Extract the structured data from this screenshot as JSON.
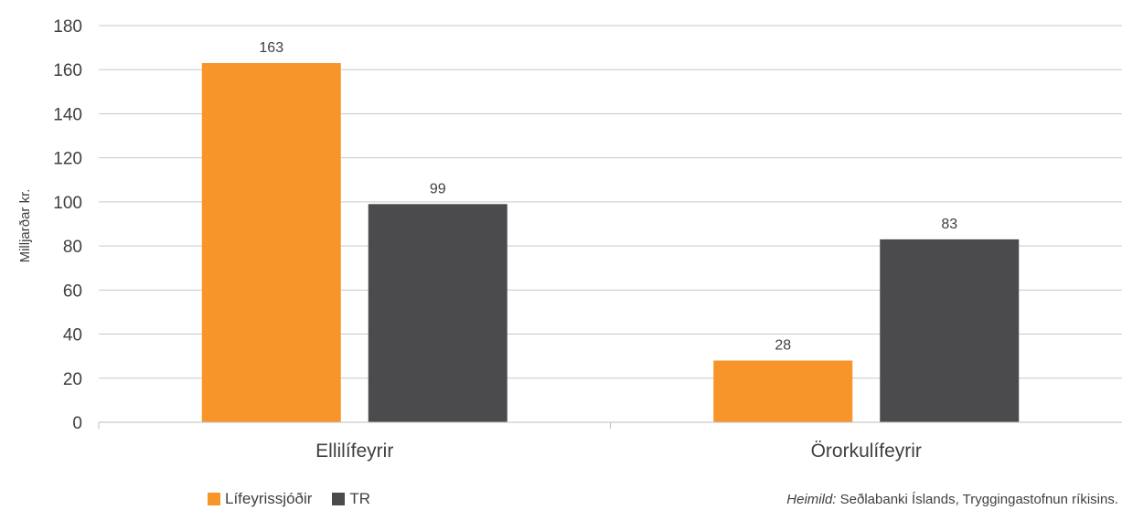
{
  "chart_data": {
    "type": "bar",
    "categories": [
      "Ellilífeyrir",
      "Örorkulífeyrir"
    ],
    "series": [
      {
        "name": "Lífeyrissjóðir",
        "values": [
          163,
          28
        ],
        "color": "#f7952a"
      },
      {
        "name": "TR",
        "values": [
          99,
          83
        ],
        "color": "#4b4b4d"
      }
    ],
    "ylabel": "Milljarðar kr.",
    "xlabel": "",
    "ylim": [
      0,
      180
    ],
    "yticks": [
      0,
      20,
      40,
      60,
      80,
      100,
      120,
      140,
      160,
      180
    ],
    "grid": true,
    "legend_position": "bottom-left",
    "data_labels": true
  },
  "source": {
    "prefix": "Heimild:",
    "text": "Seðlabanki Íslands, Tryggingastofnun ríkisins."
  }
}
